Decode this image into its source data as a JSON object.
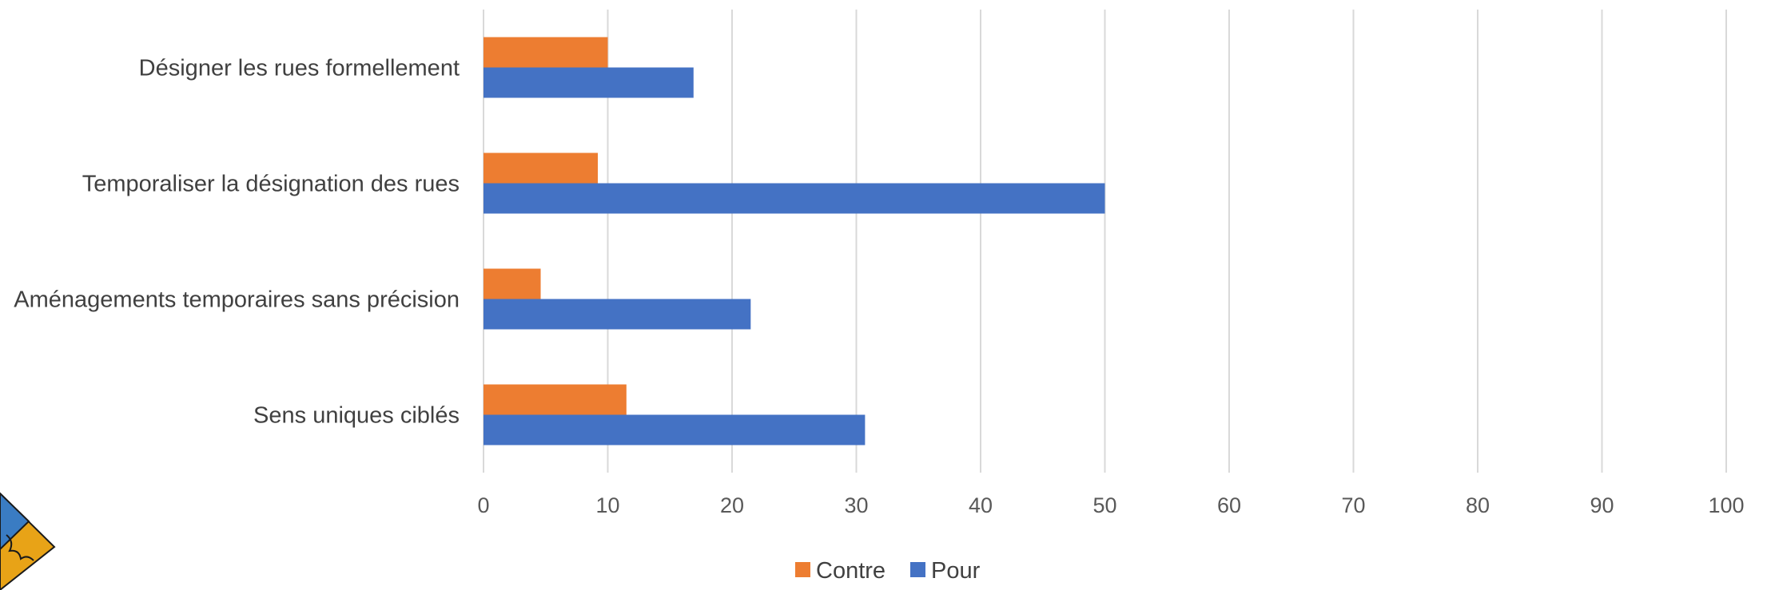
{
  "chart_data": {
    "type": "bar",
    "orientation": "horizontal",
    "categories": [
      "Désigner les rues formellement",
      "Temporaliser la désignation des rues",
      "Aménagements temporaires sans précision",
      "Sens uniques ciblés"
    ],
    "series": [
      {
        "name": "Contre",
        "color": "#ED7D31",
        "values": [
          10,
          9.2,
          4.6,
          11.5
        ]
      },
      {
        "name": "Pour",
        "color": "#4472C4",
        "values": [
          16.9,
          50,
          21.5,
          30.7
        ]
      }
    ],
    "xlim": [
      0,
      100
    ],
    "xticks": [
      "0",
      "10",
      "20",
      "30",
      "40",
      "50",
      "60",
      "70",
      "80",
      "90",
      "100"
    ],
    "grid": true,
    "gridline_color": "#D9D9D9",
    "legend_position": "bottom",
    "legend_order": [
      "Contre",
      "Pour"
    ]
  },
  "decoration": {
    "logo_icon": "coat-of-arms-icon"
  }
}
